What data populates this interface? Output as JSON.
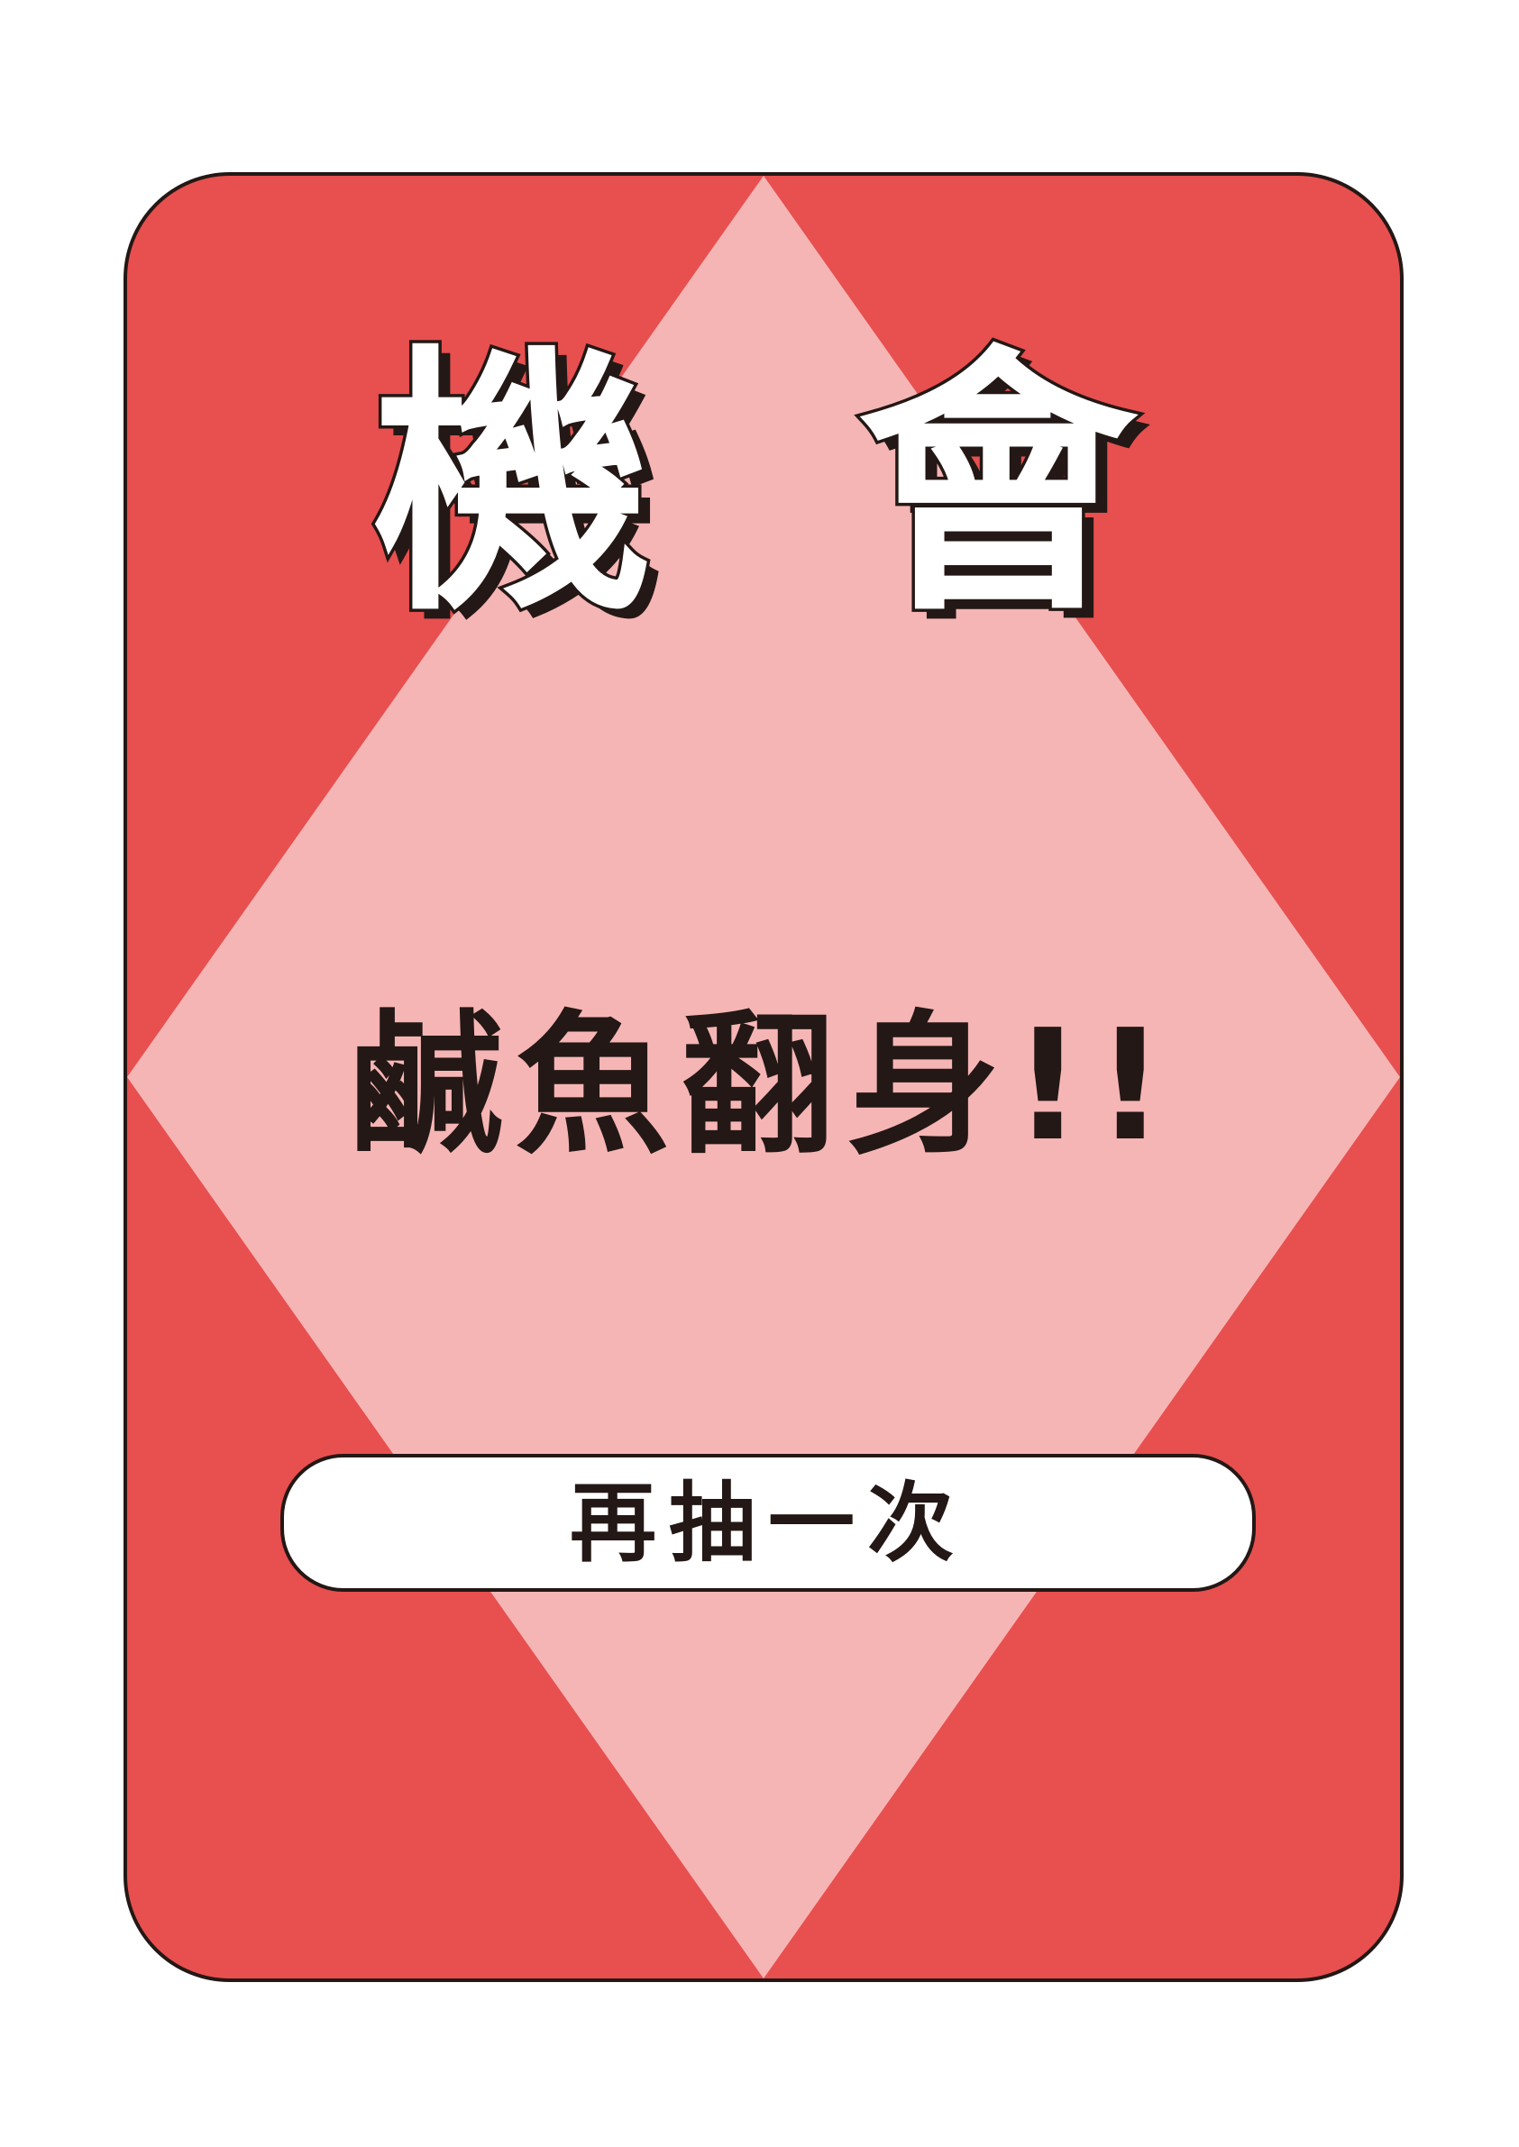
{
  "card": {
    "title": "機 會",
    "message": "鹹魚翻身!!",
    "action_label": "再抽一次"
  },
  "colors": {
    "card_background": "#e84f4f",
    "diamond": "#f6b5b5",
    "outline": "#231815",
    "pill_background": "#ffffff"
  }
}
